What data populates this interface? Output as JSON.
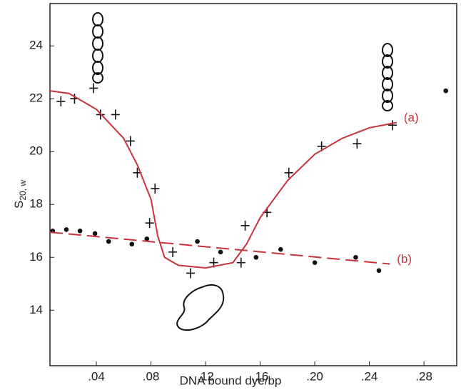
{
  "chart_data": {
    "type": "scatter",
    "x_label": "DNA bound  dye/bp",
    "y_label": "S",
    "y_label_sub": "20, w",
    "xlim": [
      0.006,
      0.304
    ],
    "ylim": [
      11.9,
      25.6
    ],
    "xticks": [
      {
        "value": 0.04,
        "label": ".04"
      },
      {
        "value": 0.08,
        "label": ".08"
      },
      {
        "value": 0.12,
        "label": ".12"
      },
      {
        "value": 0.16,
        "label": ".16"
      },
      {
        "value": 0.2,
        "label": ".20"
      },
      {
        "value": 0.24,
        "label": ".24"
      },
      {
        "value": 0.28,
        "label": ".28"
      }
    ],
    "yticks": [
      14,
      16,
      18,
      20,
      22,
      24
    ],
    "series": [
      {
        "marker": "+",
        "color": "#111111",
        "x": [
          0.014,
          0.024,
          0.038,
          0.043,
          0.054,
          0.065,
          0.07,
          0.083,
          0.079,
          0.096,
          0.109,
          0.126,
          0.146,
          0.149,
          0.165,
          0.181,
          0.205,
          0.231,
          0.257
        ],
        "values": [
          21.9,
          22.0,
          22.4,
          21.4,
          21.4,
          20.4,
          19.2,
          18.6,
          17.3,
          16.2,
          15.4,
          15.8,
          15.8,
          17.2,
          17.7,
          19.2,
          20.2,
          20.3,
          21.0
        ]
      },
      {
        "marker": "dot",
        "color": "#111111",
        "x": [
          0.008,
          0.018,
          0.028,
          0.039,
          0.049,
          0.066,
          0.077,
          0.114,
          0.131,
          0.157,
          0.175,
          0.2,
          0.23,
          0.247,
          0.296
        ],
        "values": [
          17.0,
          17.05,
          17.0,
          16.9,
          16.6,
          16.5,
          16.7,
          16.6,
          16.2,
          16.0,
          16.3,
          15.8,
          16.0,
          15.5,
          22.3
        ]
      },
      {
        "name": "(a)",
        "marker": "line",
        "style": "solid",
        "color": "#c8323c",
        "x": [
          0.006,
          0.02,
          0.04,
          0.06,
          0.07,
          0.08,
          0.085,
          0.09,
          0.1,
          0.12,
          0.14,
          0.15,
          0.16,
          0.18,
          0.2,
          0.22,
          0.24,
          0.26
        ],
        "values": [
          22.3,
          22.2,
          21.6,
          20.5,
          19.5,
          18.2,
          16.8,
          16.0,
          15.7,
          15.6,
          15.8,
          16.5,
          17.5,
          18.9,
          19.9,
          20.5,
          20.9,
          21.1
        ]
      },
      {
        "name": "(b)",
        "marker": "line",
        "style": "dashed",
        "color": "#c8323c",
        "x": [
          0.006,
          0.255
        ],
        "values": [
          16.95,
          15.75
        ]
      }
    ]
  }
}
